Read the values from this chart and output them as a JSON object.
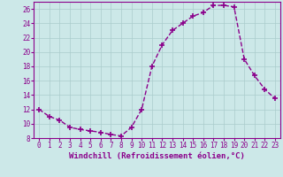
{
  "x": [
    0,
    1,
    2,
    3,
    4,
    5,
    6,
    7,
    8,
    9,
    10,
    11,
    12,
    13,
    14,
    15,
    16,
    17,
    18,
    19,
    20,
    21,
    22,
    23
  ],
  "y": [
    12,
    11,
    10.5,
    9.5,
    9.2,
    9.0,
    8.8,
    8.5,
    8.3,
    9.5,
    12.0,
    18.0,
    21.0,
    23.0,
    24.0,
    25.0,
    25.5,
    26.5,
    26.5,
    26.3,
    19.0,
    16.7,
    14.8,
    13.5
  ],
  "line_color": "#8B008B",
  "marker": "+",
  "marker_size": 4,
  "line_width": 1.0,
  "bg_color": "#cce8e8",
  "grid_color": "#aacccc",
  "xlabel": "Windchill (Refroidissement éolien,°C)",
  "ylim": [
    8,
    27
  ],
  "xlim": [
    -0.5,
    23.5
  ],
  "yticks": [
    8,
    10,
    12,
    14,
    16,
    18,
    20,
    22,
    24,
    26
  ],
  "xticks": [
    0,
    1,
    2,
    3,
    4,
    5,
    6,
    7,
    8,
    9,
    10,
    11,
    12,
    13,
    14,
    15,
    16,
    17,
    18,
    19,
    20,
    21,
    22,
    23
  ],
  "xlabel_fontsize": 6.5,
  "tick_fontsize": 5.5,
  "spine_color": "#8B008B",
  "marker_color": "#8B008B"
}
